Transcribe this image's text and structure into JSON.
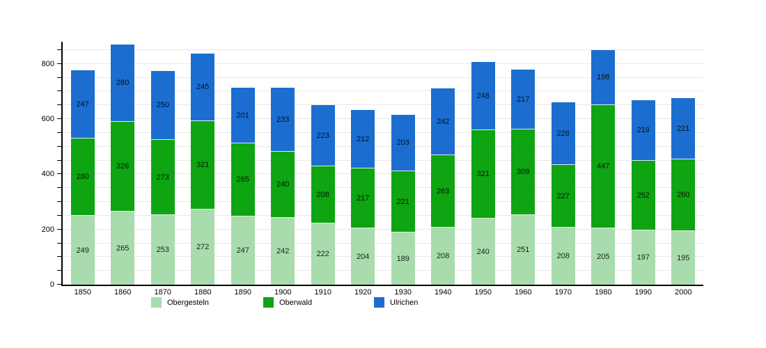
{
  "chart_data": {
    "type": "bar",
    "stacked": true,
    "title": "",
    "xlabel": "",
    "ylabel": "",
    "categories": [
      "1850",
      "1860",
      "1870",
      "1880",
      "1890",
      "1900",
      "1910",
      "1920",
      "1930",
      "1940",
      "1950",
      "1960",
      "1970",
      "1980",
      "1990",
      "2000"
    ],
    "series": [
      {
        "name": "Obergesteln",
        "color": "#a8dcac",
        "values": [
          249,
          265,
          253,
          272,
          247,
          242,
          222,
          204,
          189,
          208,
          240,
          251,
          208,
          205,
          197,
          195
        ]
      },
      {
        "name": "Oberwald",
        "color": "#0ea412",
        "values": [
          280,
          326,
          273,
          321,
          265,
          240,
          208,
          217,
          221,
          263,
          321,
          309,
          227,
          447,
          252,
          260
        ]
      },
      {
        "name": "Ulrichen",
        "color": "#1b6ed0",
        "values": [
          247,
          280,
          250,
          245,
          201,
          233,
          223,
          212,
          203,
          242,
          248,
          217,
          226,
          198,
          219,
          221
        ]
      }
    ],
    "ylim": [
      0,
      880
    ],
    "ytick_values": [
      0,
      200,
      400,
      600,
      800
    ],
    "ytick_labels": [
      "0",
      "200",
      "400",
      "600",
      "800"
    ],
    "grid": true,
    "grid_step": 50,
    "legend_position": "bottom"
  }
}
